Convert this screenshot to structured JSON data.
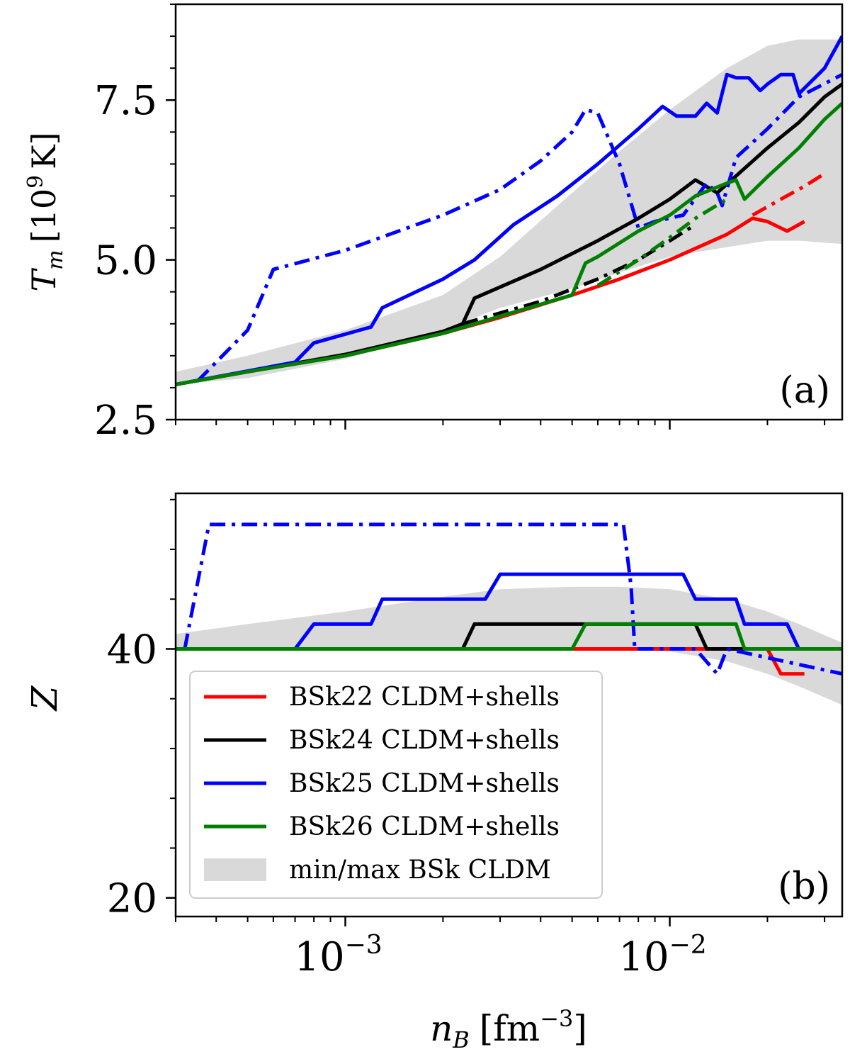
{
  "chart_data": [
    {
      "panel": "(a)",
      "type": "line",
      "xscale": "log",
      "xlim": [
        0.0003,
        0.034
      ],
      "ylim": [
        2.5,
        9.0
      ],
      "ylabel": "T_m [10^9 K]",
      "yticks": [
        2.5,
        5.0,
        7.5
      ],
      "ytick_labels": [
        "2.5",
        "5.0",
        "7.5"
      ],
      "band": {
        "name": "min/max BSk CLDM",
        "x": [
          0.0003,
          0.0005,
          0.001,
          0.002,
          0.003,
          0.005,
          0.007,
          0.01,
          0.015,
          0.02,
          0.025,
          0.034
        ],
        "lower": [
          3.05,
          3.15,
          3.45,
          3.9,
          4.25,
          4.55,
          4.8,
          5.05,
          5.2,
          5.3,
          5.3,
          5.25
        ],
        "upper": [
          3.25,
          3.5,
          3.9,
          4.45,
          5.05,
          6.05,
          6.7,
          7.35,
          8.0,
          8.35,
          8.45,
          8.45
        ]
      },
      "series": [
        {
          "name": "BSk22 CLDM+shells",
          "color": "#ff0000",
          "style": "solid",
          "x": [
            0.0003,
            0.0005,
            0.001,
            0.002,
            0.003,
            0.005,
            0.007,
            0.01,
            0.015,
            0.018,
            0.02,
            0.023,
            0.026
          ],
          "y": [
            3.05,
            3.25,
            3.5,
            3.85,
            4.1,
            4.45,
            4.7,
            5.0,
            5.4,
            5.65,
            5.6,
            5.45,
            5.6
          ]
        },
        {
          "name": "BSk22 CLDM+shells (dash-dot)",
          "color": "#ff0000",
          "style": "dashdot",
          "x": [
            0.018,
            0.022,
            0.026,
            0.03
          ],
          "y": [
            5.7,
            5.95,
            6.15,
            6.35
          ]
        },
        {
          "name": "BSk24 CLDM+shells",
          "color": "#000000",
          "style": "solid",
          "x": [
            0.0003,
            0.0005,
            0.001,
            0.002,
            0.0023,
            0.0025,
            0.004,
            0.006,
            0.008,
            0.01,
            0.012,
            0.014,
            0.02,
            0.025,
            0.03,
            0.034
          ],
          "y": [
            3.05,
            3.25,
            3.52,
            3.88,
            4.0,
            4.4,
            4.85,
            5.3,
            5.65,
            5.95,
            6.25,
            6.05,
            6.75,
            7.15,
            7.55,
            7.75
          ]
        },
        {
          "name": "BSk24 CLDM+shells (dash-dot)",
          "color": "#000000",
          "style": "dashdot",
          "x": [
            0.0023,
            0.004,
            0.006,
            0.008,
            0.01,
            0.012
          ],
          "y": [
            4.0,
            4.35,
            4.7,
            5.0,
            5.3,
            5.55
          ]
        },
        {
          "name": "BSk25 CLDM+shells",
          "color": "#0000ff",
          "style": "solid",
          "x": [
            0.0003,
            0.0007,
            0.0008,
            0.0012,
            0.0013,
            0.002,
            0.0025,
            0.0033,
            0.0045,
            0.006,
            0.008,
            0.0095,
            0.0105,
            0.012,
            0.013,
            0.014,
            0.015,
            0.016,
            0.0175,
            0.019,
            0.02,
            0.022,
            0.024,
            0.025,
            0.03,
            0.034
          ],
          "y": [
            3.05,
            3.4,
            3.7,
            3.95,
            4.25,
            4.7,
            5.0,
            5.55,
            6.0,
            6.5,
            7.05,
            7.4,
            7.25,
            7.25,
            7.45,
            7.3,
            7.9,
            7.85,
            7.85,
            7.65,
            7.75,
            7.9,
            7.9,
            7.6,
            8.0,
            8.5
          ]
        },
        {
          "name": "BSk25 CLDM+shells (dash-dot)",
          "color": "#0000ff",
          "style": "dashdot",
          "x": [
            0.00035,
            0.0005,
            0.0006,
            0.001,
            0.002,
            0.003,
            0.004,
            0.005,
            0.0055,
            0.006,
            0.007,
            0.008,
            0.009,
            0.011,
            0.013,
            0.014,
            0.0145,
            0.016,
            0.02,
            0.025,
            0.034
          ],
          "y": [
            3.1,
            3.9,
            4.85,
            5.15,
            5.7,
            6.1,
            6.55,
            7.0,
            7.35,
            7.3,
            6.5,
            5.5,
            5.6,
            5.7,
            6.2,
            6.05,
            5.85,
            6.6,
            7.05,
            7.55,
            7.9
          ]
        },
        {
          "name": "BSk26 CLDM+shells",
          "color": "#008000",
          "style": "solid",
          "x": [
            0.0003,
            0.0005,
            0.001,
            0.002,
            0.003,
            0.005,
            0.0055,
            0.006,
            0.008,
            0.01,
            0.012,
            0.015,
            0.016,
            0.017,
            0.02,
            0.025,
            0.03,
            0.034
          ],
          "y": [
            3.05,
            3.25,
            3.5,
            3.85,
            4.12,
            4.45,
            4.95,
            5.05,
            5.45,
            5.7,
            6.0,
            6.2,
            6.25,
            5.95,
            6.3,
            6.75,
            7.2,
            7.45
          ]
        },
        {
          "name": "BSk26 CLDM+shells (dash-dot)",
          "color": "#008000",
          "style": "dashdot",
          "x": [
            0.006,
            0.008,
            0.01,
            0.012,
            0.015
          ],
          "y": [
            4.6,
            5.0,
            5.35,
            5.65,
            5.95
          ]
        }
      ],
      "annotation": "(a)"
    },
    {
      "panel": "(b)",
      "type": "line",
      "xscale": "log",
      "xlim": [
        0.0003,
        0.034
      ],
      "ylim": [
        18.5,
        52.5
      ],
      "xlabel": "n_B [fm^-3]",
      "ylabel": "Z",
      "yticks": [
        20,
        40
      ],
      "ytick_labels": [
        "20",
        "40"
      ],
      "xticks": [
        0.001,
        0.01
      ],
      "xtick_labels": [
        "10",
        "10"
      ],
      "xtick_exponents": [
        "−3",
        "−2"
      ],
      "band": {
        "name": "min/max BSk CLDM",
        "x": [
          0.0003,
          0.0005,
          0.001,
          0.002,
          0.003,
          0.005,
          0.007,
          0.01,
          0.015,
          0.02,
          0.025,
          0.034
        ],
        "lower": [
          39.8,
          39.9,
          40.0,
          40.0,
          40.0,
          40.0,
          40.0,
          39.8,
          39.0,
          38.0,
          37.0,
          35.5
        ],
        "upper": [
          41.2,
          42.0,
          43.0,
          44.2,
          44.8,
          45.0,
          45.0,
          44.8,
          44.0,
          43.0,
          42.0,
          40.5
        ]
      },
      "series": [
        {
          "name": "BSk22 CLDM+shells",
          "color": "#ff0000",
          "style": "solid",
          "x": [
            0.0003,
            0.005,
            0.02,
            0.022,
            0.023,
            0.026
          ],
          "y": [
            40,
            40,
            40,
            38.0,
            38.0,
            38.0
          ]
        },
        {
          "name": "BSk24 CLDM+shells",
          "color": "#000000",
          "style": "solid",
          "x": [
            0.0003,
            0.0023,
            0.0025,
            0.012,
            0.013,
            0.014,
            0.015,
            0.034
          ],
          "y": [
            40,
            40,
            42,
            42,
            40,
            40,
            40,
            40
          ]
        },
        {
          "name": "BSk25 CLDM+shells",
          "color": "#0000ff",
          "style": "solid",
          "x": [
            0.0003,
            0.0007,
            0.0008,
            0.0012,
            0.0013,
            0.0027,
            0.003,
            0.011,
            0.012,
            0.016,
            0.017,
            0.019,
            0.02,
            0.023,
            0.025,
            0.034
          ],
          "y": [
            40,
            40,
            42,
            42,
            44,
            44,
            46,
            46,
            44,
            44,
            42,
            42,
            42,
            42,
            40,
            40
          ]
        },
        {
          "name": "BSk25 CLDM+shells (dash-dot)",
          "color": "#0000ff",
          "style": "dashdot",
          "x": [
            0.00032,
            0.00038,
            0.0006,
            0.007,
            0.0072,
            0.0076,
            0.0078,
            0.012,
            0.014,
            0.015,
            0.034
          ],
          "y": [
            40,
            50,
            50,
            50,
            50,
            45,
            40,
            40,
            38.0,
            40,
            38.0
          ]
        },
        {
          "name": "BSk26 CLDM+shells",
          "color": "#008000",
          "style": "solid",
          "x": [
            0.0003,
            0.005,
            0.0055,
            0.015,
            0.016,
            0.017,
            0.034
          ],
          "y": [
            40,
            40,
            42,
            42,
            42,
            40,
            40
          ]
        }
      ],
      "annotation": "(b)"
    }
  ],
  "legend": {
    "location": "lower-left",
    "entries": [
      {
        "label": "BSk22 CLDM+shells",
        "color": "#ff0000",
        "kind": "line"
      },
      {
        "label": "BSk24 CLDM+shells",
        "color": "#000000",
        "kind": "line"
      },
      {
        "label": "BSk25 CLDM+shells",
        "color": "#0000ff",
        "kind": "line"
      },
      {
        "label": "BSk26 CLDM+shells",
        "color": "#008000",
        "kind": "line"
      },
      {
        "label": "min/max BSk CLDM",
        "color": "#d9d9d9",
        "kind": "patch"
      }
    ]
  },
  "labels": {
    "top_ylabel_main": "T",
    "top_ylabel_sub": "m",
    "top_ylabel_unit": "[10",
    "top_ylabel_exp": "9",
    "top_ylabel_unit_end": "K]",
    "bottom_ylabel": "Z",
    "xlabel_main": "n",
    "xlabel_sub": "B",
    "xlabel_unit": "[fm",
    "xlabel_exp": "−3",
    "xlabel_unit_end": "]"
  }
}
